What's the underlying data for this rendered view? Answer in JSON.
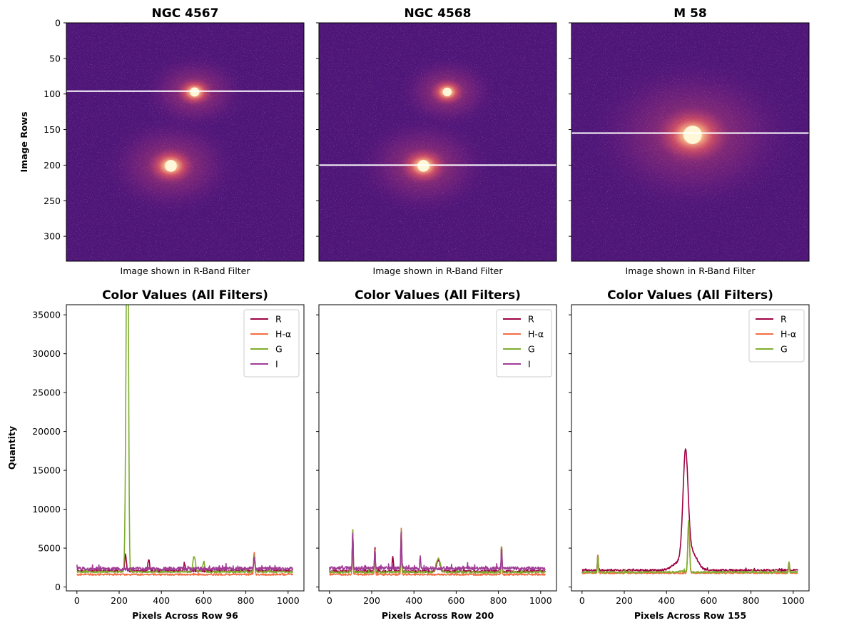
{
  "chart_data": [
    {
      "type": "image",
      "title": "NGC 4567",
      "xlabel": "Image shown in R-Band Filter",
      "ylabel": "Image Rows",
      "ylim": [
        335,
        0
      ],
      "yticks": [
        0,
        50,
        100,
        150,
        200,
        250,
        300
      ],
      "colormap": "magma",
      "highlight_row": 96,
      "cores": [
        {
          "x": 0.54,
          "y": 0.29,
          "r": 0.035
        },
        {
          "x": 0.44,
          "y": 0.6,
          "r": 0.045
        }
      ]
    },
    {
      "type": "image",
      "title": "NGC 4568",
      "xlabel": "Image shown in R-Band Filter",
      "ylim": [
        335,
        0
      ],
      "colormap": "magma",
      "highlight_row": 200,
      "cores": [
        {
          "x": 0.54,
          "y": 0.29,
          "r": 0.033
        },
        {
          "x": 0.44,
          "y": 0.6,
          "r": 0.045
        }
      ]
    },
    {
      "type": "image",
      "title": "M 58",
      "xlabel": "Image shown in R-Band Filter",
      "ylim": [
        335,
        0
      ],
      "colormap": "magma",
      "highlight_row": 155,
      "cores": [
        {
          "x": 0.51,
          "y": 0.47,
          "r": 0.07
        }
      ]
    },
    {
      "type": "line",
      "title": "Color Values (All Filters)",
      "xlabel": "Pixels Across Row 96",
      "ylabel": "Quantity",
      "xlim": [
        -50,
        1075
      ],
      "ylim": [
        -500,
        36300
      ],
      "xticks": [
        0,
        200,
        400,
        600,
        800,
        1000
      ],
      "yticks": [
        0,
        5000,
        10000,
        15000,
        20000,
        25000,
        30000,
        35000
      ],
      "legend": "top-right",
      "series": [
        {
          "name": "R",
          "color": "#9e0142",
          "base": 2050,
          "noise": 300,
          "peaks": [
            [
              230,
              4200,
              4
            ],
            [
              340,
              3600,
              4
            ],
            [
              510,
              3000,
              4
            ],
            [
              840,
              4300,
              3
            ]
          ]
        },
        {
          "name": "H-α",
          "color": "#f46d43",
          "base": 1600,
          "noise": 200,
          "peaks": [
            [
              840,
              4500,
              3
            ]
          ]
        },
        {
          "name": "G",
          "color": "#7fad2f",
          "base": 1950,
          "noise": 250,
          "peaks": [
            [
              236,
              34600,
              5
            ],
            [
              241,
              34200,
              4
            ],
            [
              555,
              3900,
              6
            ],
            [
              600,
              3200,
              5
            ],
            [
              840,
              4100,
              3
            ]
          ]
        },
        {
          "name": "I",
          "color": "#a03c96",
          "base": 2350,
          "noise": 450,
          "peaks": [
            [
              840,
              3800,
              3
            ]
          ]
        }
      ]
    },
    {
      "type": "line",
      "title": "Color Values (All Filters)",
      "xlabel": "Pixels Across Row 200",
      "xlim": [
        -50,
        1075
      ],
      "ylim": [
        -500,
        36300
      ],
      "xticks": [
        0,
        200,
        400,
        600,
        800,
        1000
      ],
      "legend": "top-right",
      "series": [
        {
          "name": "R",
          "color": "#9e0142",
          "base": 2000,
          "noise": 300,
          "peaks": [
            [
              110,
              7300,
              2
            ],
            [
              215,
              5100,
              2
            ],
            [
              300,
              3900,
              3
            ],
            [
              340,
              7500,
              2
            ],
            [
              515,
              3500,
              8
            ],
            [
              815,
              5500,
              2
            ]
          ]
        },
        {
          "name": "H-α",
          "color": "#f46d43",
          "base": 1600,
          "noise": 200,
          "peaks": [
            [
              110,
              7400,
              2
            ],
            [
              215,
              5200,
              2
            ],
            [
              340,
              7600,
              2
            ],
            [
              815,
              5600,
              2
            ]
          ]
        },
        {
          "name": "G",
          "color": "#7fad2f",
          "base": 1900,
          "noise": 250,
          "peaks": [
            [
              110,
              7200,
              2
            ],
            [
              215,
              5000,
              2
            ],
            [
              340,
              7300,
              2
            ],
            [
              515,
              3600,
              10
            ],
            [
              815,
              5400,
              2
            ]
          ]
        },
        {
          "name": "I",
          "color": "#a03c96",
          "base": 2400,
          "noise": 450,
          "peaks": [
            [
              110,
              6900,
              2
            ],
            [
              215,
              4700,
              2
            ],
            [
              340,
              7000,
              2
            ],
            [
              430,
              3900,
              2
            ],
            [
              815,
              5000,
              2
            ]
          ]
        }
      ]
    },
    {
      "type": "line",
      "title": "Color Values (All Filters)",
      "xlabel": "Pixels Across Row 155",
      "xlim": [
        -50,
        1075
      ],
      "ylim": [
        -500,
        36300
      ],
      "xticks": [
        0,
        200,
        400,
        600,
        800,
        1000
      ],
      "legend": "top-right",
      "series": [
        {
          "name": "R",
          "color": "#9e0142",
          "base": 2150,
          "noise": 250,
          "peaks": [
            [
              75,
              4200,
              2
            ],
            [
              490,
              16000,
              12
            ],
            [
              460,
              3200,
              30
            ],
            [
              520,
              4400,
              25
            ],
            [
              980,
              3300,
              2
            ]
          ]
        },
        {
          "name": "H-α",
          "color": "#f46d43",
          "base": 1800,
          "noise": 200,
          "peaks": [
            [
              75,
              4300,
              2
            ],
            [
              505,
              8400,
              4
            ],
            [
              980,
              3200,
              2
            ]
          ]
        },
        {
          "name": "G",
          "color": "#7fad2f",
          "base": 1900,
          "noise": 220,
          "peaks": [
            [
              75,
              4100,
              2
            ],
            [
              505,
              8600,
              4
            ],
            [
              480,
              2000,
              25
            ],
            [
              980,
              3300,
              2
            ]
          ]
        }
      ]
    }
  ]
}
